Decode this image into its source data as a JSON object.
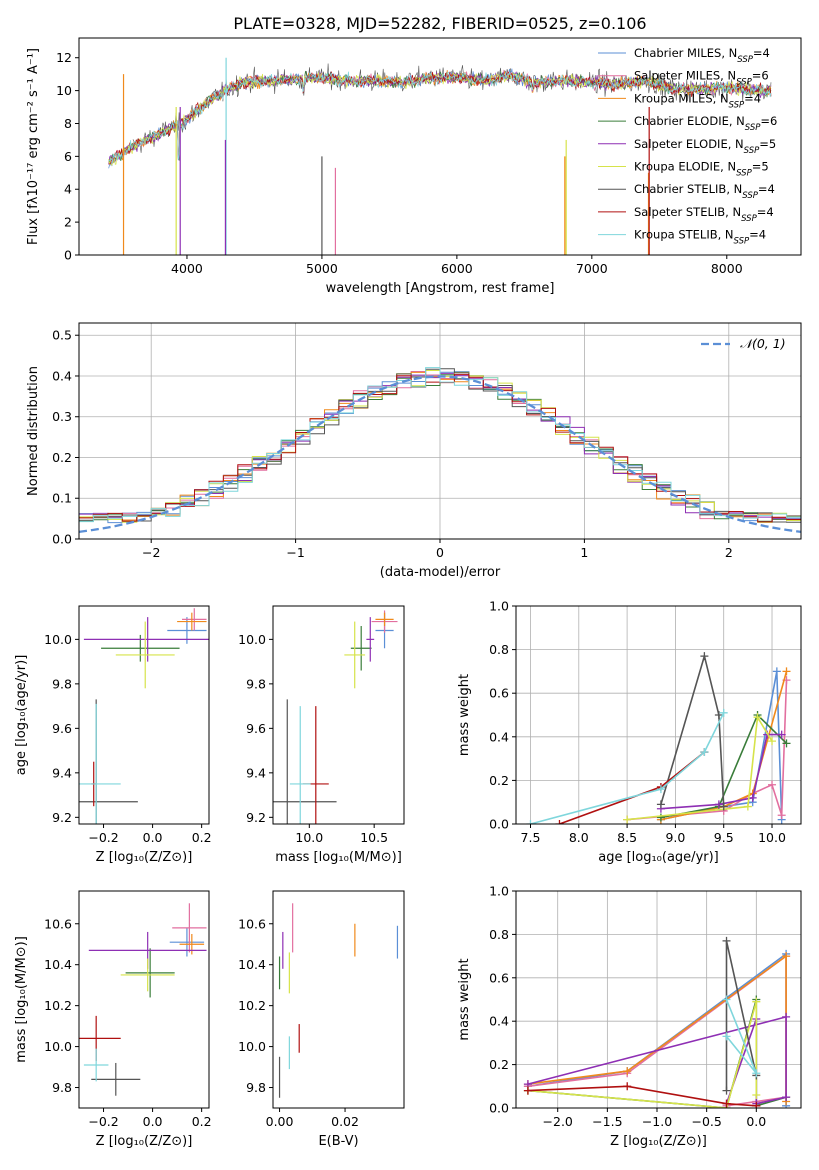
{
  "title": "PLATE=0328, MJD=52282, FIBERID=0525, z=0.106",
  "chart_data": [
    {
      "id": "spectrum",
      "type": "line",
      "xlabel": "wavelength [Angstrom, rest frame]",
      "ylabel": "Flux [fλ10⁻¹⁷ erg cm⁻² s⁻¹ A⁻¹]",
      "xlim": [
        3200,
        8550
      ],
      "ylim": [
        0,
        13.2
      ],
      "xticks": [
        4000,
        5000,
        6000,
        7000,
        8000
      ],
      "yticks": [
        0,
        2,
        4,
        6,
        8,
        10,
        12
      ],
      "legend_position": "upper-right",
      "grid": false,
      "series": [
        {
          "name": "Chabrier MILES, N_SSP=4",
          "color": "#5b8fd6"
        },
        {
          "name": "Salpeter MILES, N_SSP=6",
          "color": "#e26f9f"
        },
        {
          "name": "Kroupa MILES, N_SSP=4",
          "color": "#f08a1c"
        },
        {
          "name": "Chabrier ELODIE, N_SSP=6",
          "color": "#3a7d3a"
        },
        {
          "name": "Salpeter ELODIE, N_SSP=5",
          "color": "#8e2fb4"
        },
        {
          "name": "Kroupa ELODIE, N_SSP=5",
          "color": "#d6e34a"
        },
        {
          "name": "Chabrier STELIB, N_SSP=4",
          "color": "#555555"
        },
        {
          "name": "Salpeter STELIB, N_SSP=4",
          "color": "#b01010"
        },
        {
          "name": "Kroupa STELIB, N_SSP=4",
          "color": "#7fd6dc"
        }
      ],
      "continuum": {
        "x": [
          3400,
          3550,
          3700,
          3850,
          3950,
          4050,
          4200,
          4400,
          4600,
          4800,
          5000,
          5200,
          5400,
          5600,
          5800,
          6000,
          6200,
          6400,
          6600,
          6800,
          7000,
          7200,
          7400,
          7600,
          7800,
          8000,
          8200,
          8330
        ],
        "y": [
          5.5,
          6.4,
          7.0,
          7.6,
          8.0,
          8.6,
          9.6,
          10.5,
          10.6,
          10.7,
          10.8,
          10.6,
          10.6,
          10.5,
          10.8,
          10.8,
          10.6,
          10.9,
          10.5,
          10.6,
          10.5,
          10.4,
          10.6,
          10.1,
          10.1,
          10.2,
          10.0,
          10.0
        ]
      }
    },
    {
      "id": "residuals",
      "type": "bar",
      "xlabel": "(data-model)/error",
      "ylabel": "Normed distribution",
      "xlim": [
        -2.5,
        2.5
      ],
      "ylim": [
        0,
        0.53
      ],
      "xticks": [
        -2,
        -1,
        0,
        1,
        2
      ],
      "yticks": [
        0.0,
        0.1,
        0.2,
        0.3,
        0.4,
        0.5
      ],
      "grid": true,
      "bin_width": 0.1,
      "reference": {
        "name": "𝒩(0, 1)",
        "color": "#5b8fd6"
      }
    },
    {
      "id": "age-vs-Z",
      "type": "scatter",
      "xlabel": "Z [log₁₀(Z/Z⊙)]",
      "ylabel": "age  [log₁₀(age/yr)]",
      "xlim": [
        -0.3,
        0.23
      ],
      "ylim": [
        9.17,
        10.15
      ],
      "xticks": [
        -0.2,
        0.0,
        0.2
      ],
      "yticks": [
        9.2,
        9.4,
        9.6,
        9.8,
        10.0
      ],
      "points": [
        {
          "x": 0.14,
          "y": 10.04,
          "xerr": 0.08,
          "yerr": 0.06
        },
        {
          "x": 0.17,
          "y": 10.09,
          "xerr": 0.05,
          "yerr": 0.05
        },
        {
          "x": 0.16,
          "y": 10.08,
          "xerr": 0.06,
          "yerr": 0.04
        },
        {
          "x": -0.05,
          "y": 9.96,
          "xerr": 0.16,
          "yerr": 0.06
        },
        {
          "x": -0.02,
          "y": 10.0,
          "xerr": 0.26,
          "yerr": 0.1
        },
        {
          "x": -0.03,
          "y": 9.93,
          "xerr": 0.12,
          "yerr": 0.15
        },
        {
          "x": -0.23,
          "y": 9.27,
          "xerr": 0.17,
          "yerr": 0.46
        },
        {
          "x": -0.24,
          "y": 9.35,
          "xerr": 0.01,
          "yerr": 0.1
        },
        {
          "x": -0.23,
          "y": 9.35,
          "xerr": 0.1,
          "yerr": 0.36
        }
      ]
    },
    {
      "id": "age-vs-mass",
      "type": "scatter",
      "xlabel": "mass [log₁₀(M/M⊙)]",
      "ylabel": "",
      "xlim": [
        9.72,
        10.73
      ],
      "ylim": [
        9.17,
        10.15
      ],
      "xticks": [
        9.0,
        10.0,
        10.5
      ],
      "xtick_labels": [
        "9.0",
        "10.0",
        "10.5"
      ],
      "yticks": [
        9.2,
        9.4,
        9.6,
        9.8,
        10.0
      ],
      "points": [
        {
          "x": 10.58,
          "y": 10.04,
          "xerr": 0.07,
          "yerr": 0.08
        },
        {
          "x": 10.58,
          "y": 10.08,
          "xerr": 0.1,
          "yerr": 0.05
        },
        {
          "x": 10.58,
          "y": 10.09,
          "xerr": 0.07,
          "yerr": 0.03
        },
        {
          "x": 10.4,
          "y": 9.96,
          "xerr": 0.08,
          "yerr": 0.1
        },
        {
          "x": 10.47,
          "y": 10.0,
          "xerr": 0.03,
          "yerr": 0.1
        },
        {
          "x": 10.35,
          "y": 9.93,
          "xerr": 0.08,
          "yerr": 0.15
        },
        {
          "x": 9.83,
          "y": 9.27,
          "xerr": 0.38,
          "yerr": 0.46
        },
        {
          "x": 10.05,
          "y": 9.35,
          "xerr": 0.1,
          "yerr": 0.35
        },
        {
          "x": 9.93,
          "y": 9.35,
          "xerr": 0.08,
          "yerr": 0.35
        }
      ]
    },
    {
      "id": "weight-vs-age",
      "type": "line",
      "xlabel": "age  [log₁₀(age/yr)]",
      "ylabel": "mass weight",
      "xlim": [
        7.35,
        10.3
      ],
      "ylim": [
        0,
        1.0
      ],
      "xticks": [
        7.5,
        8.0,
        8.5,
        9.0,
        9.5,
        10.0
      ],
      "yticks": [
        0.0,
        0.2,
        0.4,
        0.6,
        0.8,
        1.0
      ],
      "grid": true,
      "series": [
        {
          "x": [
            8.85,
            9.5,
            9.8,
            10.05,
            10.1
          ],
          "y": [
            0.02,
            0.08,
            0.1,
            0.7,
            0.02
          ]
        },
        {
          "x": [
            8.5,
            9.5,
            9.8,
            10.0,
            10.1,
            10.15
          ],
          "y": [
            0.02,
            0.06,
            0.14,
            0.18,
            0.04,
            0.66
          ]
        },
        {
          "x": [
            8.85,
            9.5,
            9.8,
            10.15
          ],
          "y": [
            0.02,
            0.08,
            0.14,
            0.7
          ]
        },
        {
          "x": [
            8.85,
            9.45,
            9.85,
            10.15
          ],
          "y": [
            0.03,
            0.08,
            0.5,
            0.37
          ]
        },
        {
          "x": [
            8.85,
            9.45,
            9.8,
            9.95,
            10.1
          ],
          "y": [
            0.07,
            0.09,
            0.12,
            0.41,
            0.41
          ]
        },
        {
          "x": [
            8.5,
            9.75,
            9.85,
            10.0
          ],
          "y": [
            0.02,
            0.08,
            0.49,
            0.38
          ]
        },
        {
          "x": [
            8.85,
            9.3,
            9.45,
            9.5
          ],
          "y": [
            0.09,
            0.77,
            0.5,
            0.08
          ]
        },
        {
          "x": [
            7.8,
            8.85,
            9.3
          ],
          "y": [
            0.0,
            0.17,
            0.33
          ]
        },
        {
          "x": [
            7.5,
            8.85,
            9.3,
            9.5
          ],
          "y": [
            0.0,
            0.16,
            0.33,
            0.51
          ]
        }
      ]
    },
    {
      "id": "mass-vs-Z",
      "type": "scatter",
      "xlabel": "Z [log₁₀(Z/Z⊙)]",
      "ylabel": "mass [log₁₀(M/M⊙)]",
      "xlim": [
        -0.3,
        0.23
      ],
      "ylim": [
        9.7,
        10.76
      ],
      "xticks": [
        -0.2,
        0.0,
        0.2
      ],
      "yticks": [
        9.8,
        10.0,
        10.2,
        10.4,
        10.6
      ],
      "points": [
        {
          "x": 0.14,
          "y": 10.51,
          "xerr": 0.07,
          "yerr": 0.07
        },
        {
          "x": 0.15,
          "y": 10.58,
          "xerr": 0.07,
          "yerr": 0.12
        },
        {
          "x": 0.16,
          "y": 10.5,
          "xerr": 0.05,
          "yerr": 0.05
        },
        {
          "x": -0.01,
          "y": 10.36,
          "xerr": 0.1,
          "yerr": 0.12
        },
        {
          "x": -0.02,
          "y": 10.47,
          "xerr": 0.24,
          "yerr": 0.09
        },
        {
          "x": -0.02,
          "y": 10.35,
          "xerr": 0.11,
          "yerr": 0.08
        },
        {
          "x": -0.15,
          "y": 9.84,
          "xerr": 0.1,
          "yerr": 0.08
        },
        {
          "x": -0.23,
          "y": 10.04,
          "xerr": 0.1,
          "yerr": 0.11
        },
        {
          "x": -0.23,
          "y": 9.91,
          "xerr": 0.05,
          "yerr": 0.08
        }
      ]
    },
    {
      "id": "mass-vs-ebv",
      "type": "scatter",
      "xlabel": "E(B-V)",
      "ylabel": "",
      "xlim": [
        -0.002,
        0.038
      ],
      "ylim": [
        9.7,
        10.76
      ],
      "xticks": [
        0.0,
        0.02
      ],
      "xtick_labels": [
        "0.00",
        "0.02"
      ],
      "yticks": [
        9.8,
        10.0,
        10.2,
        10.4,
        10.6
      ],
      "points": [
        {
          "x": 0.036,
          "y": 10.51,
          "xerr": 0,
          "yerr": 0.08
        },
        {
          "x": 0.004,
          "y": 10.58,
          "xerr": 0,
          "yerr": 0.12
        },
        {
          "x": 0.023,
          "y": 10.52,
          "xerr": 0,
          "yerr": 0.08
        },
        {
          "x": 0.0,
          "y": 10.36,
          "xerr": 0,
          "yerr": 0.08
        },
        {
          "x": 0.001,
          "y": 10.47,
          "xerr": 0,
          "yerr": 0.09
        },
        {
          "x": 0.003,
          "y": 10.36,
          "xerr": 0,
          "yerr": 0.1
        },
        {
          "x": 0.0,
          "y": 9.85,
          "xerr": 0,
          "yerr": 0.1
        },
        {
          "x": 0.006,
          "y": 10.04,
          "xerr": 0,
          "yerr": 0.07
        },
        {
          "x": 0.003,
          "y": 9.97,
          "xerr": 0,
          "yerr": 0.08
        }
      ]
    },
    {
      "id": "weight-vs-Z",
      "type": "line",
      "xlabel": "Z [log₁₀(Z/Z⊙)]",
      "ylabel": "mass weight",
      "xlim": [
        -2.42,
        0.45
      ],
      "ylim": [
        0,
        1.0
      ],
      "xticks": [
        -2.0,
        -1.5,
        -1.0,
        -0.5,
        0.0
      ],
      "yticks": [
        0.0,
        0.2,
        0.4,
        0.6,
        0.8,
        1.0
      ],
      "grid": true,
      "series": [
        {
          "x": [
            -2.3,
            -1.3,
            0.3,
            0.3
          ],
          "y": [
            0.1,
            0.17,
            0.71,
            0.01
          ]
        },
        {
          "x": [
            -2.3,
            -1.3,
            0.3,
            0.3,
            -0.3,
            0.0
          ],
          "y": [
            0.1,
            0.16,
            0.7,
            0.05,
            0.01,
            0.03
          ]
        },
        {
          "x": [
            -2.3,
            -1.3,
            0.3,
            0.3
          ],
          "y": [
            0.11,
            0.17,
            0.7,
            0.03
          ]
        },
        {
          "x": [
            -2.3,
            -0.3,
            0.0,
            0.0,
            0.3
          ],
          "y": [
            0.08,
            0.0,
            0.5,
            0.01,
            0.05
          ]
        },
        {
          "x": [
            -2.3,
            0.3,
            0.3,
            0.0,
            0.0,
            -0.3
          ],
          "y": [
            0.11,
            0.42,
            0.05,
            0.02,
            0.41,
            0.02
          ]
        },
        {
          "x": [
            -2.3,
            -0.3,
            0.0,
            0.0
          ],
          "y": [
            0.08,
            0.0,
            0.49,
            0.06
          ]
        },
        {
          "x": [
            -0.3,
            -0.3,
            0.0
          ],
          "y": [
            0.08,
            0.77,
            0.15
          ]
        },
        {
          "x": [
            -2.3,
            -1.3,
            -0.3,
            0.0
          ],
          "y": [
            0.08,
            0.1,
            0.02,
            0.01
          ]
        },
        {
          "x": [
            -0.3,
            0.0,
            -0.3
          ],
          "y": [
            0.5,
            0.16,
            0.33
          ]
        }
      ]
    }
  ]
}
